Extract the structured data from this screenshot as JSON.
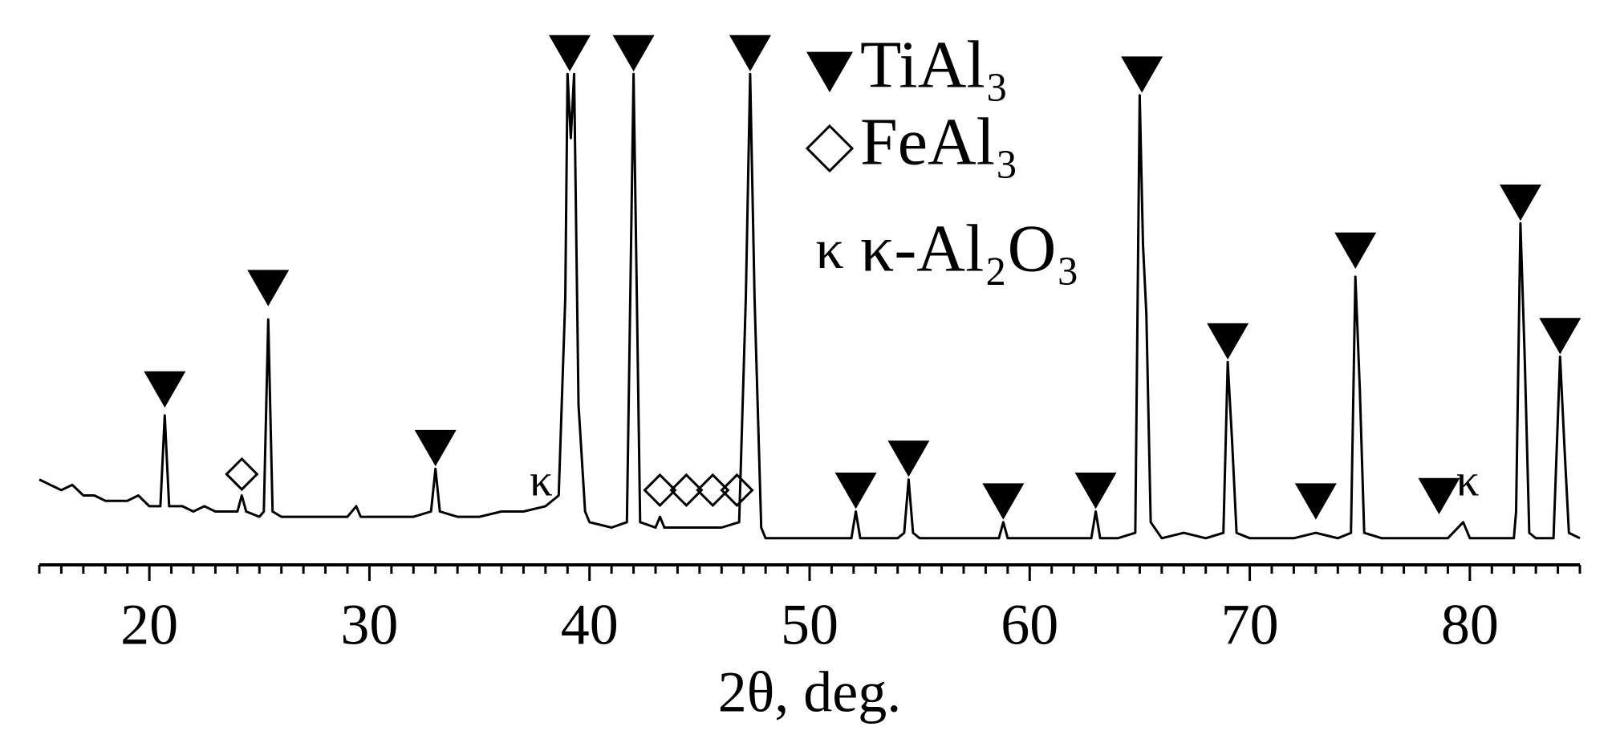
{
  "chart_data": {
    "type": "line",
    "xlabel": "2θ, deg.",
    "color": "#000000",
    "xlim": [
      15,
      85
    ],
    "xticks": [
      20,
      30,
      40,
      50,
      60,
      70,
      80
    ],
    "xminorticks": [
      15,
      16,
      17,
      18,
      19,
      21,
      22,
      23,
      24,
      25,
      26,
      27,
      28,
      29,
      31,
      32,
      33,
      34,
      35,
      36,
      37,
      38,
      39,
      41,
      42,
      43,
      44,
      45,
      46,
      47,
      48,
      49,
      51,
      52,
      53,
      54,
      55,
      56,
      57,
      58,
      59,
      61,
      62,
      63,
      64,
      65,
      66,
      67,
      68,
      69,
      71,
      72,
      73,
      74,
      75,
      76,
      77,
      78,
      79,
      81,
      82,
      83,
      84,
      85
    ],
    "ylim": [
      0,
      100
    ],
    "x": [
      15,
      15.5,
      16,
      16.5,
      17,
      17.5,
      18,
      18.5,
      19,
      19.5,
      20,
      20.5,
      20.7,
      20.9,
      21.5,
      22,
      22.5,
      23,
      23.5,
      24,
      24.2,
      24.4,
      25,
      25.2,
      25.4,
      25.6,
      26,
      27,
      28,
      29,
      29.4,
      29.6,
      30,
      31,
      32,
      32.8,
      33,
      33.2,
      34,
      35,
      36,
      37,
      38,
      38.6,
      38.9,
      39,
      39.15,
      39.3,
      39.5,
      39.8,
      40,
      41,
      41.7,
      41.85,
      42,
      42.15,
      42.3,
      43,
      43.2,
      43.4,
      44,
      45,
      46,
      46.8,
      47.1,
      47.3,
      47.5,
      47.8,
      48,
      49,
      50,
      51,
      51.9,
      52.1,
      52.3,
      53,
      54,
      54.3,
      54.5,
      54.7,
      55,
      56,
      57,
      58,
      58.6,
      58.8,
      59,
      60,
      61,
      62,
      62.8,
      63,
      63.2,
      64,
      64.8,
      65,
      65.15,
      65.3,
      65.5,
      66,
      67,
      68,
      68.8,
      69,
      69.2,
      69.4,
      70,
      71,
      72,
      73,
      74,
      74.6,
      74.8,
      75,
      75.2,
      76,
      77,
      78,
      79,
      79.7,
      80,
      81,
      82,
      82.1,
      82.3,
      82.5,
      82.7,
      83,
      83.8,
      84.1,
      84.3,
      84.5,
      85
    ],
    "values": [
      16,
      15,
      14,
      15,
      13,
      13,
      12,
      12,
      12,
      13,
      11,
      11,
      28,
      11,
      11,
      10,
      11,
      10,
      10,
      10,
      13,
      10,
      9,
      10,
      46,
      10,
      9,
      9,
      9,
      9,
      11,
      9,
      9,
      9,
      9,
      10,
      18,
      10,
      9,
      9,
      10,
      10,
      11,
      13,
      50,
      92,
      80,
      92,
      30,
      10,
      8,
      7,
      8,
      50,
      92,
      50,
      8,
      7,
      9,
      7,
      7,
      7,
      7,
      8,
      50,
      92,
      50,
      7,
      5,
      5,
      5,
      5,
      5,
      10,
      5,
      5,
      5,
      6,
      16,
      6,
      5,
      5,
      5,
      5,
      5,
      8,
      5,
      5,
      5,
      5,
      5,
      10,
      5,
      5,
      6,
      88,
      60,
      47,
      8,
      5,
      6,
      5,
      6,
      38,
      23,
      6,
      5,
      5,
      5,
      6,
      5,
      6,
      54,
      33,
      6,
      5,
      5,
      5,
      5,
      8,
      5,
      5,
      5,
      10,
      64,
      38,
      6,
      5,
      5,
      39,
      22,
      6,
      5
    ],
    "phases": [
      {
        "name": "TiAl₃",
        "marker": "triangle",
        "x": [
          20.7,
          25.4,
          33.0,
          39.1,
          42.0,
          47.3,
          52.1,
          54.5,
          58.8,
          63.0,
          65.1,
          69.0,
          73.0,
          74.8,
          78.6,
          82.3,
          84.1
        ],
        "values": [
          33,
          52,
          22,
          96,
          96,
          96,
          14,
          20,
          12,
          14,
          92,
          42,
          12,
          59,
          13,
          68,
          43
        ]
      },
      {
        "name": "FeAl₃",
        "marker": "diamond",
        "x": [
          24.2,
          43.2,
          44.4,
          45.6,
          46.7
        ],
        "values": [
          17,
          14,
          14,
          14,
          14
        ]
      },
      {
        "name": "κ-Al₂O₃",
        "symbol": "κ",
        "x": [
          37.8,
          79.9
        ],
        "values": [
          15,
          15
        ]
      }
    ]
  }
}
